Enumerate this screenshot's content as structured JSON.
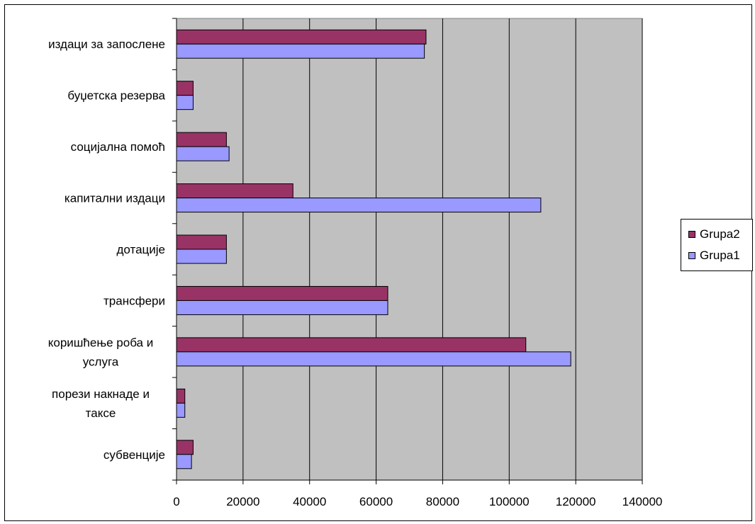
{
  "chart_data": {
    "type": "bar",
    "orientation": "horizontal",
    "title": "",
    "xlabel": "",
    "ylabel": "",
    "categories": [
      "издаци за запослене",
      "буџетска резерва",
      "социјална помоћ",
      "капитални издаци",
      "дотације",
      "трансфери",
      "коришћење роба и услуга",
      "порези накнаде и таксе",
      "субвенције"
    ],
    "category_label_lines": [
      [
        "издаци за запослене"
      ],
      [
        "буџетска резерва"
      ],
      [
        "социјална помоћ"
      ],
      [
        "капитални издаци"
      ],
      [
        "дотације"
      ],
      [
        "трансфери"
      ],
      [
        "коришћење роба и",
        "услуга"
      ],
      [
        "порези накнаде и",
        "таксе"
      ],
      [
        "субвенције"
      ]
    ],
    "series": [
      {
        "name": "Grupa2",
        "color": "#993366",
        "values": [
          75000,
          5000,
          15000,
          35000,
          15000,
          63500,
          105000,
          2500,
          5000
        ]
      },
      {
        "name": "Grupa1",
        "color": "#9999ff",
        "values": [
          74500,
          5000,
          15800,
          109500,
          15000,
          63500,
          118500,
          2500,
          4500
        ]
      }
    ],
    "xlim": [
      0,
      140000
    ],
    "xticks": [
      "0",
      "20000",
      "40000",
      "60000",
      "80000",
      "100000",
      "120000",
      "140000"
    ],
    "plot_background": "#c0c0c0",
    "grid": true,
    "legend_position": "right"
  }
}
